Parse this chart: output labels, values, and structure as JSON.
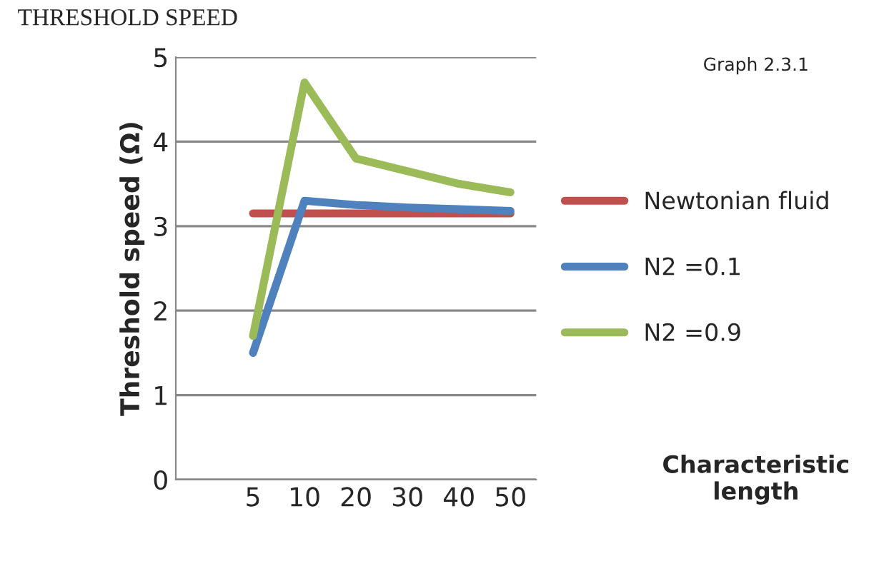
{
  "chart_data": {
    "type": "line",
    "title": "THRESHOLD SPEED",
    "ylabel": "Threshold speed (Ω)",
    "annotations": [
      "Graph 2.3.1",
      "Characteristic length"
    ],
    "categories": [
      "5",
      "10",
      "20",
      "30",
      "40",
      "50"
    ],
    "series": [
      {
        "name": "Newtonian fluid",
        "color": "#c0504d",
        "values": [
          3.15,
          3.15,
          3.15,
          3.15,
          3.15,
          3.15
        ]
      },
      {
        "name": "N2 =0.1",
        "color": "#4f81bd",
        "values": [
          1.5,
          3.3,
          3.25,
          3.22,
          3.2,
          3.18
        ]
      },
      {
        "name": "N2 =0.9",
        "color": "#9bbb59",
        "values": [
          1.7,
          4.7,
          3.8,
          3.65,
          3.5,
          3.4
        ]
      }
    ],
    "ylim": [
      0,
      5
    ],
    "yticks": [
      0,
      1,
      2,
      3,
      4,
      5
    ],
    "grid": "y",
    "legend": "right",
    "marker": "none",
    "line_style": "solid"
  }
}
